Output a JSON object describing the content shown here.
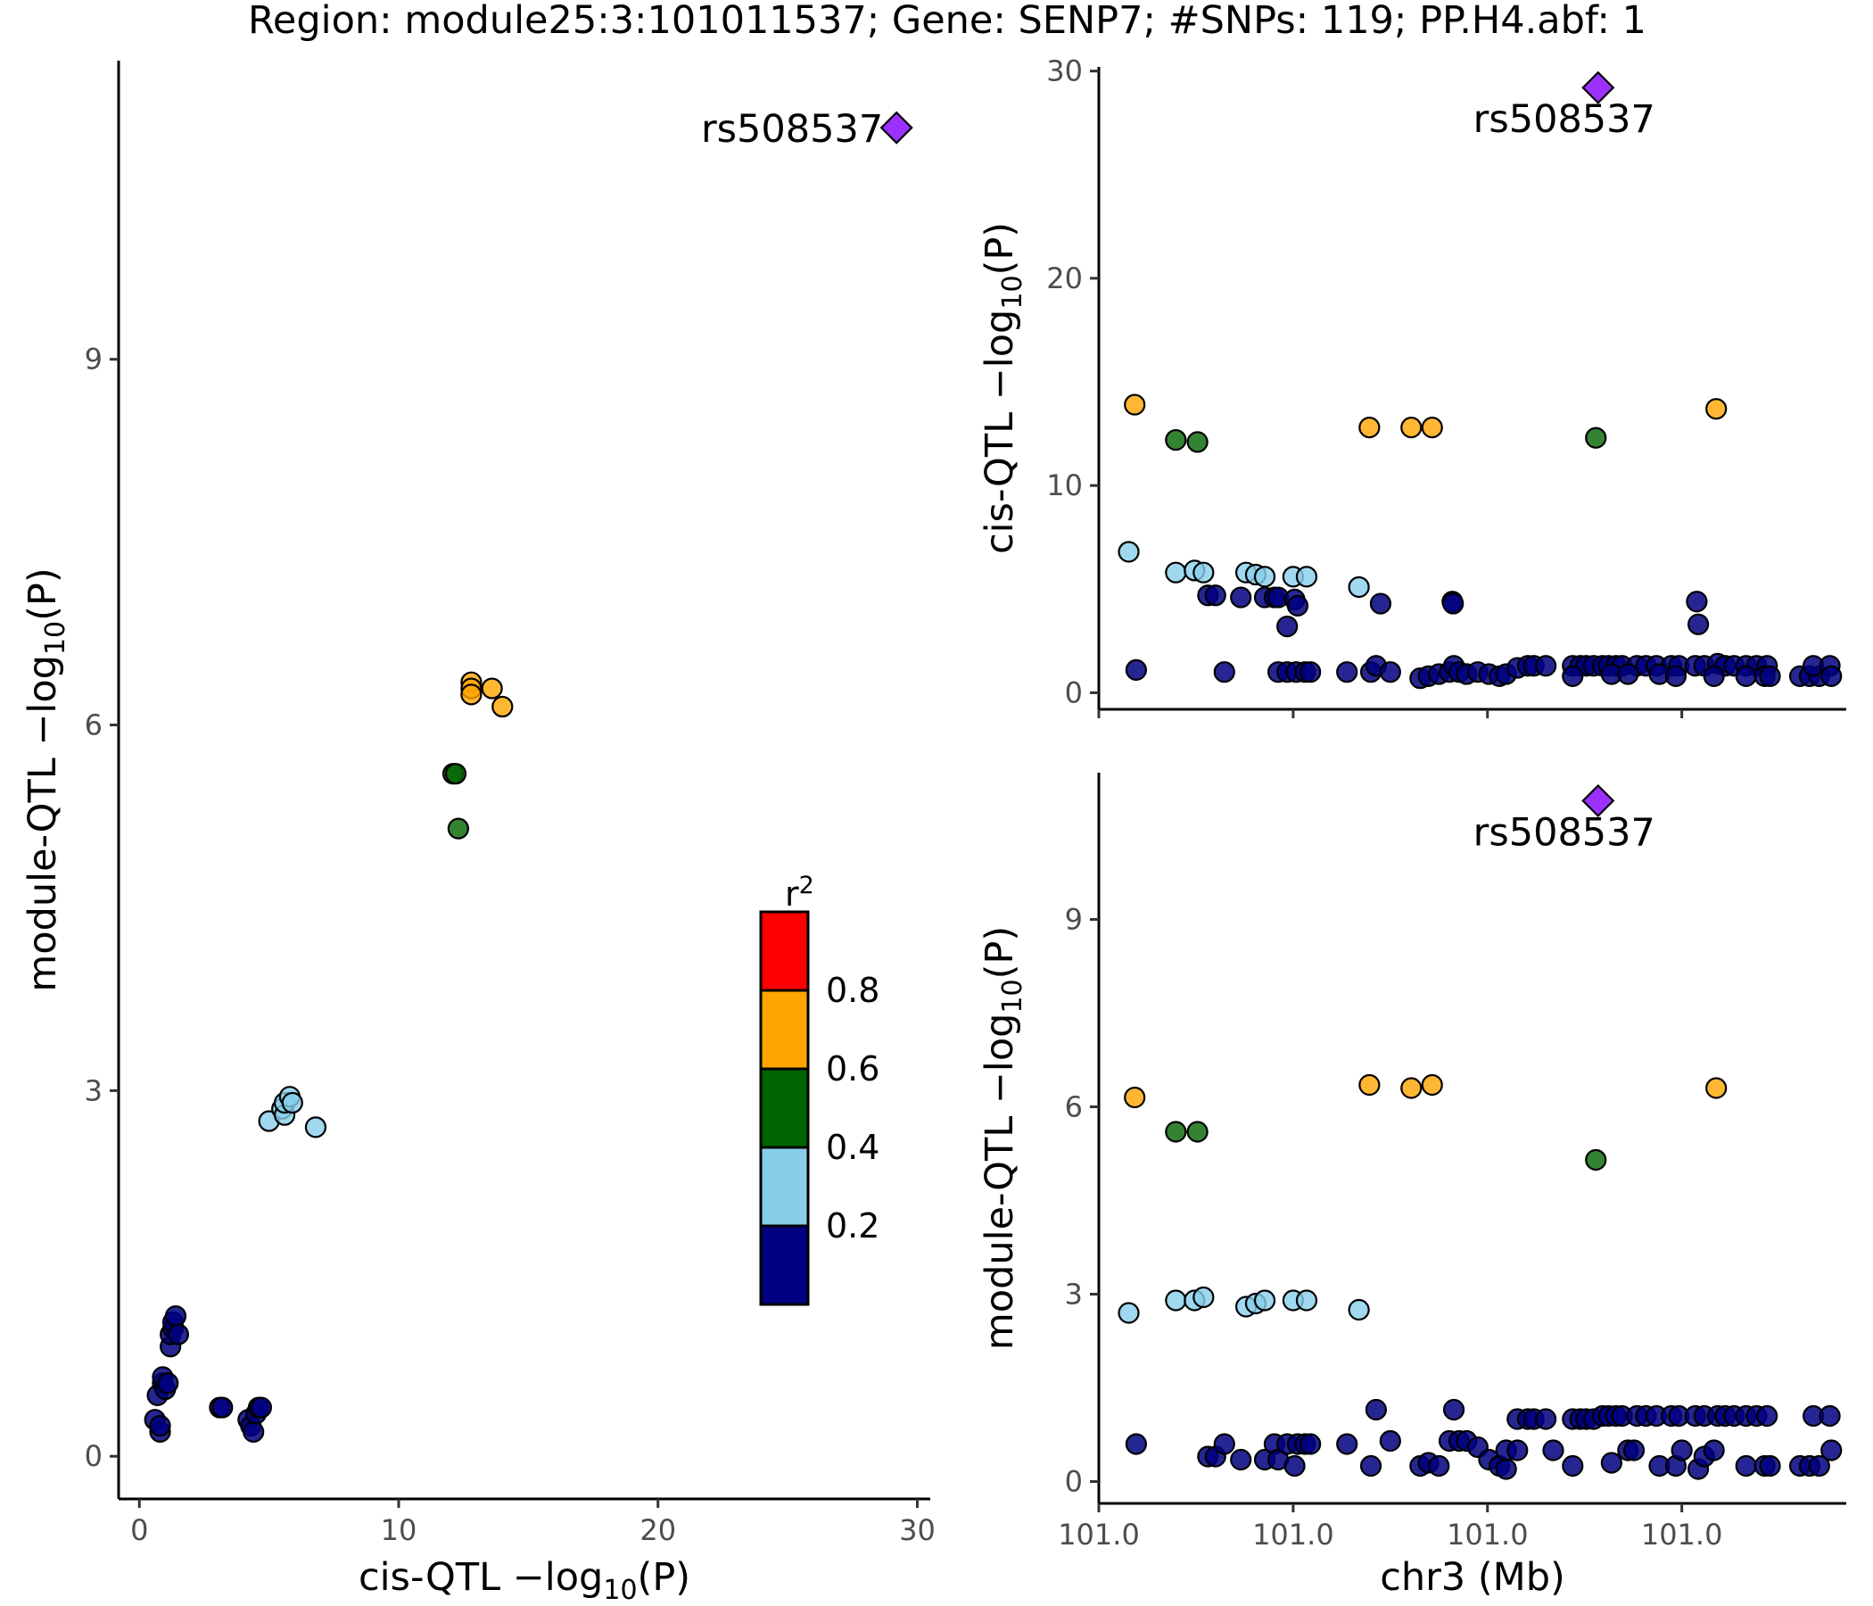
{
  "title": "Region: module25:3:101011537; Gene: SENP7; #SNPs: 119; PP.H4.abf: 1",
  "legend": {
    "title_main": "r",
    "title_sup": "2",
    "bins": [
      {
        "label": "0.8",
        "color": "#FF0000"
      },
      {
        "label": "0.6",
        "color": "#FFA500"
      },
      {
        "label": "0.4",
        "color": "#006400"
      },
      {
        "label": "0.2",
        "color": "#87CEEB"
      },
      {
        "label": "",
        "color": "#000080"
      }
    ]
  },
  "colors": {
    "orange": "#FFA500",
    "green": "#006400",
    "lightblue": "#87CEEB",
    "navy": "#000080",
    "lead": "#9B30FF"
  },
  "chart_data": [
    {
      "type": "scatter",
      "id": "left",
      "xlabel": {
        "pre": "cis-QTL −log",
        "sub": "10",
        "post": "(P)"
      },
      "ylabel": {
        "pre": "module-QTL −log",
        "sub": "10",
        "post": "(P)"
      },
      "xlim": [
        -0.8,
        30.5
      ],
      "ylim": [
        -0.35,
        11.45
      ],
      "xticks": [
        0,
        10,
        20,
        30
      ],
      "xtick_labels": [
        "0",
        "10",
        "20",
        "30"
      ],
      "yticks": [
        0,
        3,
        6,
        9
      ],
      "ytick_labels": [
        "0",
        "3",
        "6",
        "9"
      ],
      "lead": {
        "x": 29.2,
        "y": 10.9,
        "label": "rs508537"
      },
      "series": [
        {
          "name": "orange",
          "points": [
            [
              12.8,
              6.35
            ],
            [
              12.8,
              6.3
            ],
            [
              12.8,
              6.25
            ],
            [
              13.6,
              6.3
            ],
            [
              14.0,
              6.15
            ]
          ]
        },
        {
          "name": "green",
          "points": [
            [
              12.1,
              5.6
            ],
            [
              12.2,
              5.6
            ],
            [
              12.3,
              5.15
            ]
          ]
        },
        {
          "name": "lightblue",
          "points": [
            [
              5.0,
              2.75
            ],
            [
              5.5,
              2.85
            ],
            [
              5.6,
              2.8
            ],
            [
              5.6,
              2.9
            ],
            [
              5.8,
              2.95
            ],
            [
              5.9,
              2.9
            ],
            [
              6.8,
              2.7
            ]
          ]
        },
        {
          "name": "navy",
          "points": [
            [
              0.6,
              0.3
            ],
            [
              0.7,
              0.5
            ],
            [
              0.8,
              0.2
            ],
            [
              0.8,
              0.25
            ],
            [
              0.9,
              0.6
            ],
            [
              0.9,
              0.65
            ],
            [
              1.0,
              0.55
            ],
            [
              1.1,
              0.6
            ],
            [
              1.2,
              0.9
            ],
            [
              1.2,
              1.0
            ],
            [
              1.3,
              1.05
            ],
            [
              1.3,
              1.1
            ],
            [
              1.4,
              1.15
            ],
            [
              1.5,
              1.0
            ],
            [
              3.1,
              0.4
            ],
            [
              3.2,
              0.4
            ],
            [
              4.2,
              0.3
            ],
            [
              4.3,
              0.25
            ],
            [
              4.4,
              0.2
            ],
            [
              4.5,
              0.35
            ],
            [
              4.6,
              0.4
            ],
            [
              4.7,
              0.4
            ]
          ]
        }
      ]
    },
    {
      "type": "scatter",
      "id": "top-right",
      "xlabel": {
        "pre": "",
        "sub": "",
        "post": ""
      },
      "ylabel": {
        "pre": "cis-QTL −log",
        "sub": "10",
        "post": "(P)"
      },
      "xlim": [
        0.0,
        1.0
      ],
      "ylim": [
        -0.8,
        30.2
      ],
      "xticks": [
        0.0,
        0.26,
        0.52,
        0.78
      ],
      "xtick_labels": [
        "",
        "",
        "",
        ""
      ],
      "yticks": [
        0,
        10,
        20,
        30
      ],
      "ytick_labels": [
        "0",
        "10",
        "20",
        "30"
      ],
      "lead": {
        "x": 0.668,
        "y": 29.2,
        "label": "rs508537"
      },
      "series": [
        {
          "name": "orange",
          "points": [
            [
              0.048,
              13.9
            ],
            [
              0.362,
              12.8
            ],
            [
              0.418,
              12.8
            ],
            [
              0.446,
              12.8
            ],
            [
              0.826,
              13.7
            ]
          ]
        },
        {
          "name": "green",
          "points": [
            [
              0.103,
              12.2
            ],
            [
              0.132,
              12.1
            ],
            [
              0.665,
              12.3
            ]
          ]
        },
        {
          "name": "lightblue",
          "points": [
            [
              0.04,
              6.8
            ],
            [
              0.103,
              5.8
            ],
            [
              0.128,
              5.9
            ],
            [
              0.14,
              5.8
            ],
            [
              0.197,
              5.8
            ],
            [
              0.21,
              5.7
            ],
            [
              0.222,
              5.6
            ],
            [
              0.26,
              5.6
            ],
            [
              0.278,
              5.6
            ],
            [
              0.348,
              5.1
            ]
          ]
        },
        {
          "name": "navy",
          "points": [
            [
              0.05,
              1.1
            ],
            [
              0.146,
              4.7
            ],
            [
              0.156,
              4.7
            ],
            [
              0.19,
              4.6
            ],
            [
              0.222,
              4.6
            ],
            [
              0.235,
              4.6
            ],
            [
              0.24,
              4.6
            ],
            [
              0.252,
              3.2
            ],
            [
              0.262,
              4.5
            ],
            [
              0.266,
              4.2
            ],
            [
              0.377,
              4.3
            ],
            [
              0.473,
              4.4
            ],
            [
              0.474,
              4.3
            ],
            [
              0.8,
              4.4
            ],
            [
              0.802,
              3.3
            ],
            [
              0.168,
              1.0
            ],
            [
              0.24,
              1.0
            ],
            [
              0.252,
              1.0
            ],
            [
              0.264,
              1.0
            ],
            [
              0.276,
              1.0
            ],
            [
              0.283,
              1.0
            ],
            [
              0.332,
              1.0
            ],
            [
              0.364,
              1.0
            ],
            [
              0.371,
              1.3
            ],
            [
              0.39,
              1.0
            ],
            [
              0.43,
              0.7
            ],
            [
              0.441,
              0.8
            ],
            [
              0.455,
              0.9
            ],
            [
              0.469,
              1.0
            ],
            [
              0.475,
              1.3
            ],
            [
              0.482,
              1.0
            ],
            [
              0.492,
              0.9
            ],
            [
              0.507,
              1.0
            ],
            [
              0.522,
              0.9
            ],
            [
              0.536,
              0.8
            ],
            [
              0.545,
              0.9
            ],
            [
              0.56,
              1.2
            ],
            [
              0.574,
              1.3
            ],
            [
              0.582,
              1.3
            ],
            [
              0.598,
              1.3
            ],
            [
              0.634,
              1.3
            ],
            [
              0.644,
              1.3
            ],
            [
              0.652,
              1.3
            ],
            [
              0.662,
              1.3
            ],
            [
              0.674,
              1.3
            ],
            [
              0.682,
              1.3
            ],
            [
              0.692,
              1.3
            ],
            [
              0.7,
              1.3
            ],
            [
              0.72,
              1.3
            ],
            [
              0.732,
              1.3
            ],
            [
              0.746,
              1.3
            ],
            [
              0.766,
              1.3
            ],
            [
              0.776,
              1.3
            ],
            [
              0.798,
              1.3
            ],
            [
              0.81,
              1.3
            ],
            [
              0.828,
              1.4
            ],
            [
              0.838,
              1.3
            ],
            [
              0.85,
              1.3
            ],
            [
              0.866,
              1.3
            ],
            [
              0.88,
              1.3
            ],
            [
              0.894,
              1.3
            ],
            [
              0.634,
              0.8
            ],
            [
              0.686,
              0.9
            ],
            [
              0.708,
              0.9
            ],
            [
              0.75,
              0.9
            ],
            [
              0.772,
              0.8
            ],
            [
              0.823,
              0.8
            ],
            [
              0.866,
              0.8
            ],
            [
              0.891,
              0.8
            ],
            [
              0.898,
              0.8
            ],
            [
              0.938,
              0.8
            ],
            [
              0.951,
              0.8
            ],
            [
              0.964,
              0.8
            ],
            [
              0.956,
              1.3
            ],
            [
              0.978,
              1.3
            ],
            [
              0.98,
              0.8
            ]
          ]
        }
      ]
    },
    {
      "type": "scatter",
      "id": "bottom-right",
      "xlabel": {
        "pre": "chr3 (Mb)",
        "sub": "",
        "post": ""
      },
      "ylabel": {
        "pre": "module-QTL −log",
        "sub": "10",
        "post": "(P)"
      },
      "xlim": [
        0.0,
        1.0
      ],
      "ylim": [
        -0.35,
        11.35
      ],
      "xticks": [
        0.0,
        0.26,
        0.52,
        0.78
      ],
      "xtick_labels": [
        "101.0",
        "101.0",
        "101.0",
        "101.0"
      ],
      "yticks": [
        0,
        3,
        6,
        9
      ],
      "ytick_labels": [
        "0",
        "3",
        "6",
        "9"
      ],
      "lead": {
        "x": 0.668,
        "y": 10.9,
        "label": "rs508537"
      },
      "series": [
        {
          "name": "orange",
          "points": [
            [
              0.048,
              6.15
            ],
            [
              0.362,
              6.35
            ],
            [
              0.418,
              6.3
            ],
            [
              0.446,
              6.35
            ],
            [
              0.826,
              6.3
            ]
          ]
        },
        {
          "name": "green",
          "points": [
            [
              0.103,
              5.6
            ],
            [
              0.132,
              5.6
            ],
            [
              0.665,
              5.15
            ]
          ]
        },
        {
          "name": "lightblue",
          "points": [
            [
              0.04,
              2.7
            ],
            [
              0.103,
              2.9
            ],
            [
              0.128,
              2.9
            ],
            [
              0.14,
              2.95
            ],
            [
              0.197,
              2.8
            ],
            [
              0.21,
              2.85
            ],
            [
              0.222,
              2.9
            ],
            [
              0.26,
              2.9
            ],
            [
              0.278,
              2.9
            ],
            [
              0.348,
              2.75
            ]
          ]
        },
        {
          "name": "navy",
          "points": [
            [
              0.05,
              0.6
            ],
            [
              0.146,
              0.4
            ],
            [
              0.156,
              0.4
            ],
            [
              0.168,
              0.6
            ],
            [
              0.19,
              0.35
            ],
            [
              0.222,
              0.35
            ],
            [
              0.235,
              0.6
            ],
            [
              0.24,
              0.35
            ],
            [
              0.252,
              0.6
            ],
            [
              0.262,
              0.25
            ],
            [
              0.266,
              0.6
            ],
            [
              0.276,
              0.6
            ],
            [
              0.283,
              0.6
            ],
            [
              0.332,
              0.6
            ],
            [
              0.364,
              0.25
            ],
            [
              0.371,
              1.15
            ],
            [
              0.39,
              0.65
            ],
            [
              0.43,
              0.25
            ],
            [
              0.441,
              0.3
            ],
            [
              0.455,
              0.25
            ],
            [
              0.469,
              0.65
            ],
            [
              0.475,
              1.15
            ],
            [
              0.482,
              0.65
            ],
            [
              0.492,
              0.65
            ],
            [
              0.507,
              0.55
            ],
            [
              0.522,
              0.35
            ],
            [
              0.536,
              0.25
            ],
            [
              0.545,
              0.2
            ],
            [
              0.56,
              1.0
            ],
            [
              0.574,
              1.0
            ],
            [
              0.582,
              1.0
            ],
            [
              0.598,
              1.0
            ],
            [
              0.634,
              1.0
            ],
            [
              0.644,
              1.0
            ],
            [
              0.652,
              1.0
            ],
            [
              0.662,
              1.0
            ],
            [
              0.674,
              1.05
            ],
            [
              0.682,
              1.05
            ],
            [
              0.692,
              1.05
            ],
            [
              0.7,
              1.05
            ],
            [
              0.72,
              1.05
            ],
            [
              0.732,
              1.05
            ],
            [
              0.746,
              1.05
            ],
            [
              0.766,
              1.05
            ],
            [
              0.776,
              1.05
            ],
            [
              0.798,
              1.05
            ],
            [
              0.81,
              1.05
            ],
            [
              0.828,
              1.05
            ],
            [
              0.838,
              1.05
            ],
            [
              0.85,
              1.05
            ],
            [
              0.866,
              1.05
            ],
            [
              0.88,
              1.05
            ],
            [
              0.894,
              1.05
            ],
            [
              0.545,
              0.5
            ],
            [
              0.56,
              0.5
            ],
            [
              0.634,
              0.25
            ],
            [
              0.686,
              0.3
            ],
            [
              0.708,
              0.5
            ],
            [
              0.716,
              0.5
            ],
            [
              0.75,
              0.25
            ],
            [
              0.772,
              0.25
            ],
            [
              0.78,
              0.5
            ],
            [
              0.802,
              0.2
            ],
            [
              0.81,
              0.4
            ],
            [
              0.823,
              0.5
            ],
            [
              0.866,
              0.25
            ],
            [
              0.891,
              0.25
            ],
            [
              0.898,
              0.25
            ],
            [
              0.938,
              0.25
            ],
            [
              0.951,
              0.25
            ],
            [
              0.964,
              0.25
            ],
            [
              0.956,
              1.05
            ],
            [
              0.978,
              1.05
            ],
            [
              0.98,
              0.5
            ],
            [
              0.608,
              0.5
            ]
          ]
        }
      ]
    }
  ]
}
